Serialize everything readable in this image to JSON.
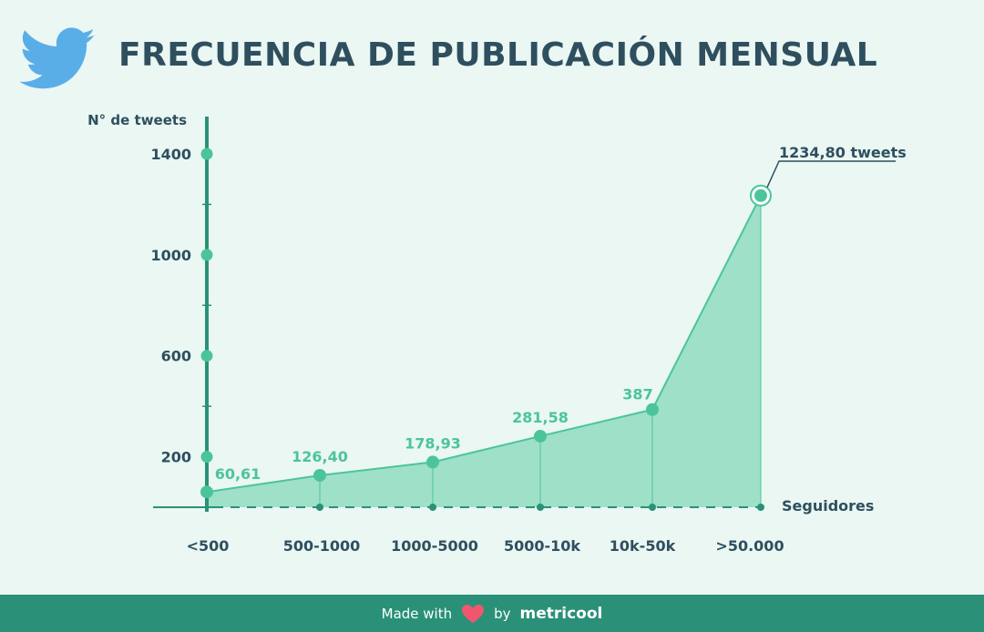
{
  "title": "FRECUENCIA DE PUBLICACIÓN MENSUAL",
  "chart_data": {
    "type": "area",
    "ylabel": "N° de tweets",
    "xlabel": "Seguidores",
    "ylim": [
      0,
      1400
    ],
    "yticks": [
      200,
      600,
      1000,
      1400
    ],
    "yticks_labels": [
      "200",
      "600",
      "1000",
      "1400"
    ],
    "categories": [
      "<500",
      "500-1000",
      "1000-5000",
      "5000-10k",
      "10k-50k",
      ">50.000"
    ],
    "values": [
      60.61,
      126.4,
      178.93,
      281.58,
      387,
      1234.8
    ],
    "value_labels": [
      "60,61",
      "126,40",
      "178,93",
      "281,58",
      "387",
      ""
    ],
    "callout": "1234,80 tweets",
    "grid": false,
    "colors": {
      "fill": "#9ee0c8",
      "line": "#4cc49a",
      "axis": "#2a9178",
      "text_dark": "#2f4f5f",
      "text_value": "#4cc49a"
    }
  },
  "footer": {
    "made_with": "Made with",
    "by": "by",
    "brand": "metricool"
  }
}
